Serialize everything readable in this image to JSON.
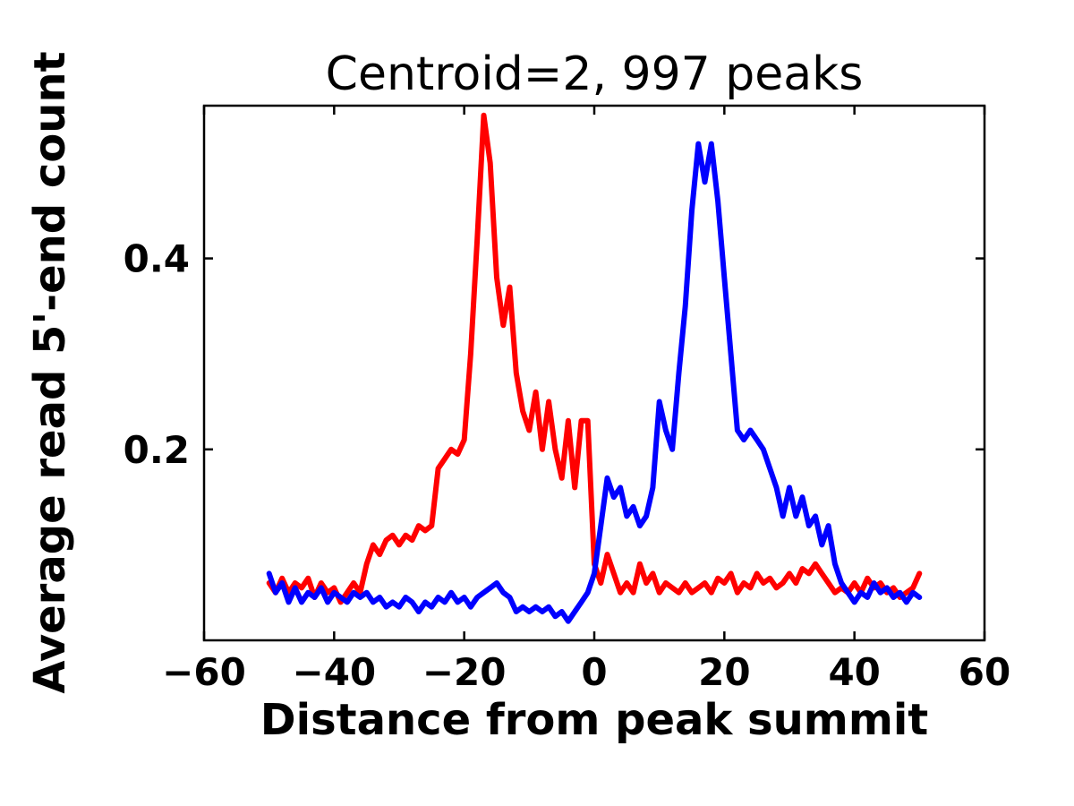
{
  "figure": {
    "background": "#ffffff",
    "axis_color": "#000000"
  },
  "chart_data": {
    "type": "line",
    "title": "Centroid=2, 997 peaks",
    "xlabel": "Distance from peak summit",
    "ylabel": "Average read 5'-end count",
    "xlim": [
      -60,
      60
    ],
    "ylim": [
      0,
      0.56
    ],
    "x_ticks": [
      -60,
      -40,
      -20,
      0,
      20,
      40,
      60
    ],
    "x_tick_labels": [
      "−60",
      "−40",
      "−20",
      "0",
      "20",
      "40",
      "60"
    ],
    "y_ticks": [
      0.2,
      0.4
    ],
    "y_tick_labels": [
      "0.2",
      "0.4"
    ],
    "grid": false,
    "legend_position": "none",
    "x": [
      -50,
      -49,
      -48,
      -47,
      -46,
      -45,
      -44,
      -43,
      -42,
      -41,
      -40,
      -39,
      -38,
      -37,
      -36,
      -35,
      -34,
      -33,
      -32,
      -31,
      -30,
      -29,
      -28,
      -27,
      -26,
      -25,
      -24,
      -23,
      -22,
      -21,
      -20,
      -19,
      -18,
      -17,
      -16,
      -15,
      -14,
      -13,
      -12,
      -11,
      -10,
      -9,
      -8,
      -7,
      -6,
      -5,
      -4,
      -3,
      -2,
      -1,
      0,
      1,
      2,
      3,
      4,
      5,
      6,
      7,
      8,
      9,
      10,
      11,
      12,
      13,
      14,
      15,
      16,
      17,
      18,
      19,
      20,
      21,
      22,
      23,
      24,
      25,
      26,
      27,
      28,
      29,
      30,
      31,
      32,
      33,
      34,
      35,
      36,
      37,
      38,
      39,
      40,
      41,
      42,
      43,
      44,
      45,
      46,
      47,
      48,
      49,
      50
    ],
    "series": [
      {
        "name": "red-line",
        "color": "#ff0000",
        "values": [
          0.06,
          0.05,
          0.065,
          0.05,
          0.06,
          0.055,
          0.065,
          0.045,
          0.06,
          0.05,
          0.055,
          0.04,
          0.05,
          0.06,
          0.05,
          0.08,
          0.1,
          0.09,
          0.105,
          0.11,
          0.1,
          0.11,
          0.105,
          0.12,
          0.115,
          0.12,
          0.18,
          0.19,
          0.2,
          0.195,
          0.21,
          0.3,
          0.42,
          0.55,
          0.5,
          0.38,
          0.33,
          0.37,
          0.28,
          0.24,
          0.22,
          0.26,
          0.2,
          0.25,
          0.2,
          0.17,
          0.23,
          0.16,
          0.23,
          0.23,
          0.08,
          0.06,
          0.09,
          0.07,
          0.05,
          0.06,
          0.05,
          0.08,
          0.06,
          0.07,
          0.05,
          0.06,
          0.055,
          0.05,
          0.06,
          0.05,
          0.055,
          0.06,
          0.05,
          0.065,
          0.06,
          0.07,
          0.05,
          0.06,
          0.055,
          0.07,
          0.06,
          0.065,
          0.055,
          0.06,
          0.07,
          0.06,
          0.075,
          0.07,
          0.08,
          0.07,
          0.06,
          0.05,
          0.055,
          0.05,
          0.06,
          0.05,
          0.065,
          0.055,
          0.06,
          0.05,
          0.055,
          0.045,
          0.05,
          0.055,
          0.07
        ]
      },
      {
        "name": "blue-line",
        "color": "#0000ff",
        "values": [
          0.07,
          0.05,
          0.06,
          0.04,
          0.055,
          0.04,
          0.05,
          0.045,
          0.055,
          0.04,
          0.05,
          0.045,
          0.04,
          0.05,
          0.045,
          0.05,
          0.04,
          0.045,
          0.035,
          0.04,
          0.035,
          0.045,
          0.04,
          0.03,
          0.04,
          0.035,
          0.045,
          0.04,
          0.05,
          0.04,
          0.045,
          0.035,
          0.045,
          0.05,
          0.055,
          0.06,
          0.05,
          0.045,
          0.03,
          0.035,
          0.03,
          0.035,
          0.03,
          0.035,
          0.025,
          0.03,
          0.02,
          0.03,
          0.04,
          0.05,
          0.07,
          0.12,
          0.17,
          0.15,
          0.16,
          0.13,
          0.14,
          0.12,
          0.13,
          0.16,
          0.25,
          0.22,
          0.2,
          0.28,
          0.35,
          0.45,
          0.52,
          0.48,
          0.52,
          0.46,
          0.38,
          0.3,
          0.22,
          0.21,
          0.22,
          0.21,
          0.2,
          0.18,
          0.16,
          0.13,
          0.16,
          0.13,
          0.15,
          0.12,
          0.13,
          0.1,
          0.12,
          0.08,
          0.06,
          0.05,
          0.04,
          0.05,
          0.045,
          0.06,
          0.05,
          0.055,
          0.045,
          0.05,
          0.04,
          0.05,
          0.045
        ]
      }
    ]
  }
}
